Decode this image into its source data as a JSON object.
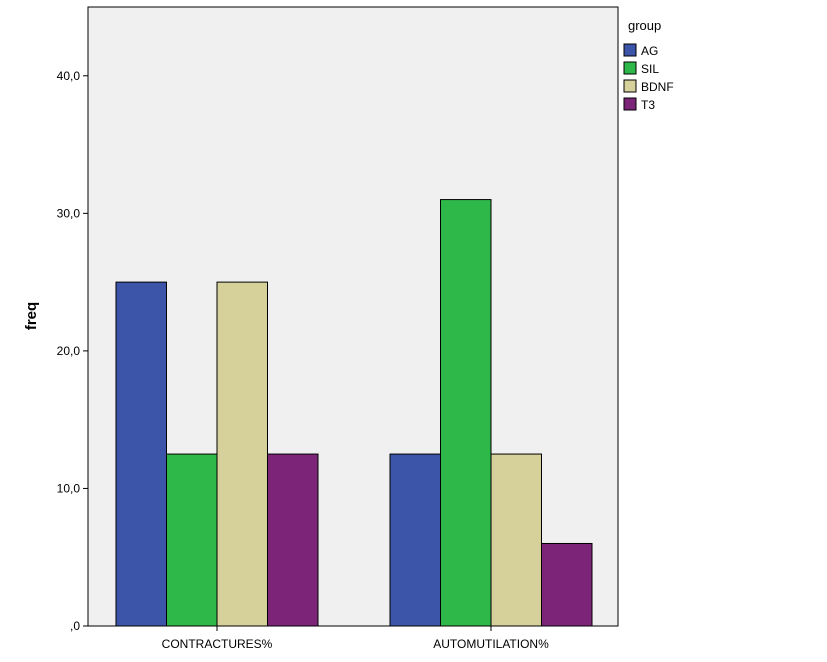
{
  "chart_data": {
    "type": "bar",
    "title": "",
    "xlabel": "",
    "ylabel": "freq",
    "ylim": [
      0,
      45
    ],
    "yticks": [
      0,
      10,
      20,
      30,
      40
    ],
    "ytick_labels": [
      ",0",
      "10,0",
      "20,0",
      "30,0",
      "40,0"
    ],
    "grid": false,
    "legend_title": "group",
    "legend_position": "top-right",
    "categories": [
      "CONTRACTURES%",
      "AUTOMUTILATION%"
    ],
    "series": [
      {
        "name": "AG",
        "color": "#3d55a8",
        "values": [
          25,
          12.5
        ]
      },
      {
        "name": "SIL",
        "color": "#2eb84a",
        "values": [
          12.5,
          31
        ]
      },
      {
        "name": "BDNF",
        "color": "#d6d09a",
        "values": [
          25,
          12.5
        ]
      },
      {
        "name": "T3",
        "color": "#7b2478",
        "values": [
          12.5,
          6
        ]
      }
    ],
    "plot_background": "#f0f0f0"
  }
}
